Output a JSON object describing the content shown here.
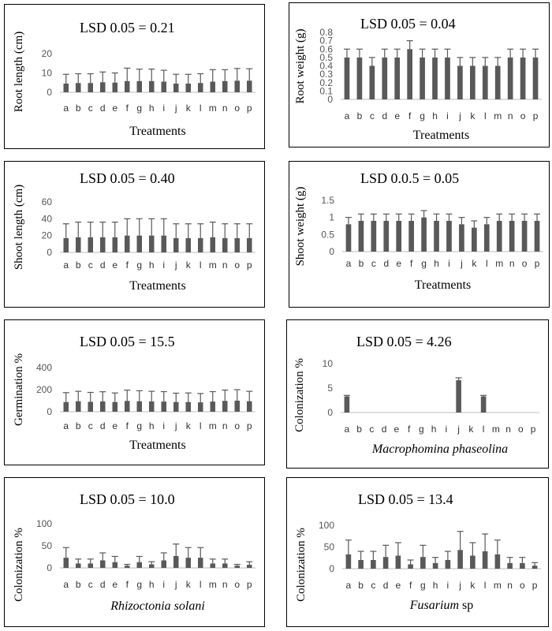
{
  "chart_data": [
    {
      "type": "bar",
      "title": "LSD 0.05 = 0.21",
      "ylabel": "Root length (cm)",
      "xlabel": "Treatments",
      "ylim": [
        0,
        20
      ],
      "yticks": [
        "0",
        "10",
        "20"
      ],
      "categories": [
        "a",
        "b",
        "c",
        "d",
        "e",
        "f",
        "g",
        "h",
        "i",
        "j",
        "k",
        "l",
        "m",
        "n",
        "o",
        "p"
      ],
      "values": [
        4.5,
        4.8,
        4.8,
        5.2,
        5.0,
        5.8,
        5.8,
        5.8,
        5.5,
        4.5,
        4.5,
        4.8,
        5.5,
        5.8,
        6.0,
        6.0
      ],
      "errors": [
        4.8,
        4.8,
        4.8,
        5.3,
        5.0,
        6.7,
        6.2,
        6.2,
        5.9,
        4.8,
        4.8,
        4.8,
        6.2,
        5.9,
        6.3,
        6.2
      ]
    },
    {
      "type": "bar",
      "title": "LSD 0.05 = 0.04",
      "ylabel": "Root weight (g)",
      "xlabel": "Treatments",
      "ylim": [
        0,
        0.8
      ],
      "yticks": [
        "0",
        "0.1",
        "0.2",
        "0.3",
        "0.4",
        "0.5",
        "0.6",
        "0.7",
        "0.8"
      ],
      "categories": [
        "a",
        "b",
        "c",
        "d",
        "e",
        "f",
        "g",
        "h",
        "i",
        "j",
        "k",
        "l",
        "m",
        "n",
        "o",
        "p"
      ],
      "values": [
        0.5,
        0.5,
        0.4,
        0.5,
        0.5,
        0.6,
        0.5,
        0.5,
        0.5,
        0.4,
        0.4,
        0.4,
        0.4,
        0.5,
        0.5,
        0.5
      ],
      "errors": [
        0.1,
        0.1,
        0.1,
        0.1,
        0.1,
        0.1,
        0.1,
        0.1,
        0.1,
        0.1,
        0.1,
        0.1,
        0.1,
        0.1,
        0.1,
        0.1
      ]
    },
    {
      "type": "bar",
      "title": "LSD 0.05 = 0.40",
      "ylabel": "Shoot length (cm)",
      "xlabel": "Treatments",
      "ylim": [
        0,
        60
      ],
      "yticks": [
        "0",
        "20",
        "40",
        "60"
      ],
      "categories": [
        "a",
        "b",
        "c",
        "d",
        "e",
        "f",
        "g",
        "h",
        "i",
        "j",
        "k",
        "l",
        "m",
        "n",
        "o",
        "p"
      ],
      "values": [
        17,
        18,
        18,
        18,
        18,
        20,
        20,
        20,
        20,
        17,
        17,
        17,
        18,
        17,
        17,
        17
      ],
      "errors": [
        17,
        18,
        18,
        18,
        18,
        20,
        20,
        20,
        20,
        17,
        17,
        17,
        18,
        17,
        17,
        17
      ]
    },
    {
      "type": "bar",
      "title": "LSD 0.0.5 = 0.05",
      "ylabel": "Shoot weight (g)",
      "xlabel": "Treatments",
      "ylim": [
        0,
        1.5
      ],
      "yticks": [
        "0",
        "0.5",
        "1",
        "1.5"
      ],
      "categories": [
        "a",
        "b",
        "c",
        "d",
        "e",
        "f",
        "g",
        "h",
        "i",
        "j",
        "k",
        "l",
        "m",
        "n",
        "o",
        "p"
      ],
      "values": [
        0.8,
        0.9,
        0.9,
        0.9,
        0.9,
        0.9,
        1.0,
        0.9,
        0.9,
        0.8,
        0.7,
        0.8,
        0.9,
        0.9,
        0.9,
        0.9
      ],
      "errors": [
        0.2,
        0.2,
        0.2,
        0.2,
        0.2,
        0.2,
        0.2,
        0.2,
        0.2,
        0.2,
        0.2,
        0.2,
        0.2,
        0.2,
        0.2,
        0.2
      ]
    },
    {
      "type": "bar",
      "title": "LSD 0.05 = 15.5",
      "ylabel": "Germination %",
      "xlabel": "Treatments",
      "ylim": [
        0,
        400
      ],
      "yticks": [
        "0",
        "200",
        "400"
      ],
      "categories": [
        "a",
        "b",
        "c",
        "d",
        "e",
        "f",
        "g",
        "h",
        "i",
        "j",
        "k",
        "l",
        "m",
        "n",
        "o",
        "p"
      ],
      "values": [
        88,
        95,
        90,
        93,
        88,
        98,
        95,
        93,
        92,
        88,
        88,
        85,
        92,
        98,
        100,
        95
      ],
      "errors": [
        85,
        90,
        85,
        88,
        82,
        98,
        95,
        92,
        90,
        80,
        82,
        80,
        90,
        98,
        100,
        90
      ]
    },
    {
      "type": "bar",
      "title": "LSD 0.05 = 4.26",
      "ylabel": "Colonization %",
      "xlabel": "Macrophomina phaseolina",
      "xlabel_italic": true,
      "ylim": [
        0,
        10
      ],
      "yticks": [
        "0",
        "5",
        "10"
      ],
      "categories": [
        "a",
        "b",
        "c",
        "d",
        "e",
        "f",
        "g",
        "h",
        "i",
        "j",
        "k",
        "l",
        "m",
        "n",
        "o",
        "p"
      ],
      "values": [
        3.3,
        0,
        0,
        0,
        0,
        0,
        0,
        0,
        0,
        6.6,
        0,
        3.3,
        0,
        0,
        0,
        0
      ],
      "errors": [
        0.2,
        0,
        0,
        0,
        0,
        0,
        0,
        0,
        0,
        0.5,
        0,
        0.2,
        0,
        0,
        0,
        0
      ]
    },
    {
      "type": "bar",
      "title": "LSD 0.05 = 10.0",
      "ylabel": "Colonization %",
      "xlabel": "Rhizoctonia solani",
      "xlabel_italic": true,
      "ylim": [
        0,
        100
      ],
      "yticks": [
        "0",
        "50",
        "100"
      ],
      "categories": [
        "a",
        "b",
        "c",
        "d",
        "e",
        "f",
        "g",
        "h",
        "i",
        "j",
        "k",
        "l",
        "m",
        "n",
        "o",
        "p"
      ],
      "values": [
        23,
        10,
        10,
        17,
        13,
        5,
        13,
        8,
        17,
        27,
        23,
        23,
        10,
        10,
        5,
        7
      ],
      "errors": [
        23,
        10,
        10,
        17,
        13,
        3,
        13,
        6,
        17,
        27,
        23,
        23,
        10,
        10,
        3,
        7
      ]
    },
    {
      "type": "bar",
      "title": "LSD 0.05 = 13.4",
      "ylabel": "Colonization %",
      "xlabel": "Fusarium sp",
      "xlabel_italic_part": "Fusarium",
      "xlabel_plain_part": " sp",
      "ylim": [
        0,
        100
      ],
      "yticks": [
        "0",
        "50",
        "100"
      ],
      "categories": [
        "a",
        "b",
        "c",
        "d",
        "e",
        "f",
        "g",
        "h",
        "i",
        "j",
        "k",
        "l",
        "m",
        "n",
        "o",
        "p"
      ],
      "values": [
        33,
        20,
        20,
        27,
        30,
        10,
        27,
        13,
        20,
        43,
        30,
        40,
        33,
        13,
        13,
        7
      ],
      "errors": [
        33,
        20,
        20,
        27,
        30,
        10,
        27,
        13,
        20,
        43,
        30,
        40,
        33,
        13,
        13,
        7
      ]
    }
  ]
}
